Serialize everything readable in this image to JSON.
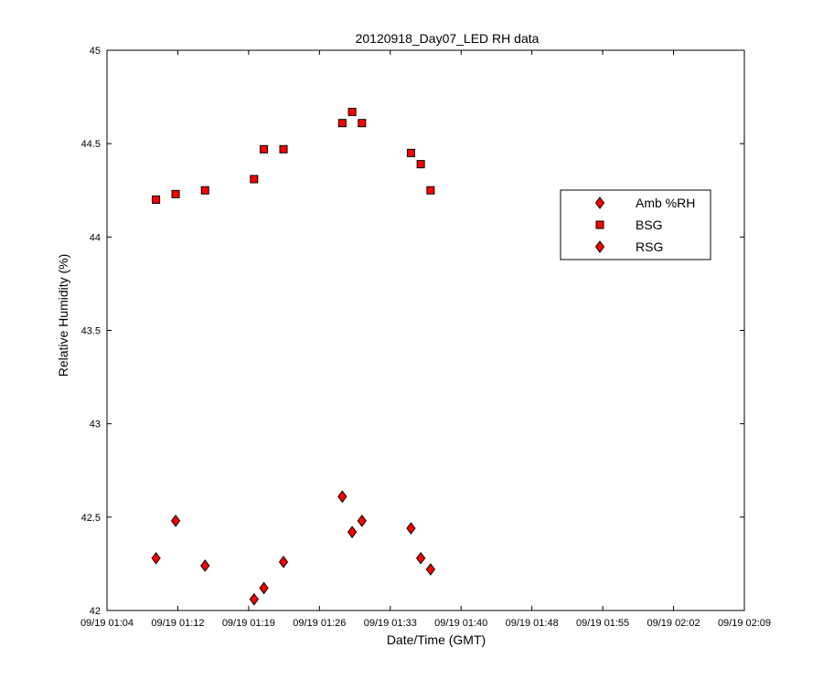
{
  "chart_data": {
    "type": "scatter",
    "title": "20120918_Day07_LED RH data",
    "xlabel": "Date/Time (GMT)",
    "ylabel": "Relative Humidity (%)",
    "xlim": [
      "09/19 01:04",
      "09/19 02:09"
    ],
    "ylim": [
      42,
      45
    ],
    "x_ticks": [
      "09/19 01:04",
      "09/19 01:12",
      "09/19 01:19",
      "09/19 01:26",
      "09/19 01:33",
      "09/19 01:40",
      "09/19 01:48",
      "09/19 01:55",
      "09/19 02:02",
      "09/19 02:09"
    ],
    "y_ticks": [
      "42",
      "42.5",
      "43",
      "43.5",
      "44",
      "44.5",
      "45"
    ],
    "grid": false,
    "legend_position": "right",
    "legend": [
      "Amb %RH",
      "BSG",
      "RSG"
    ],
    "series": [
      {
        "name": "Amb %RH",
        "marker": "diamond",
        "color": "#ff0000",
        "points": []
      },
      {
        "name": "BSG",
        "marker": "square",
        "color": "#ff0000",
        "points": [
          {
            "x": "09/19 01:09",
            "y": 44.2
          },
          {
            "x": "09/19 01:11",
            "y": 44.23
          },
          {
            "x": "09/19 01:14",
            "y": 44.25
          },
          {
            "x": "09/19 01:19",
            "y": 44.31
          },
          {
            "x": "09/19 01:20",
            "y": 44.47
          },
          {
            "x": "09/19 01:22",
            "y": 44.47
          },
          {
            "x": "09/19 01:28",
            "y": 44.61
          },
          {
            "x": "09/19 01:29",
            "y": 44.67
          },
          {
            "x": "09/19 01:30",
            "y": 44.61
          },
          {
            "x": "09/19 01:35",
            "y": 44.45
          },
          {
            "x": "09/19 01:36",
            "y": 44.39
          },
          {
            "x": "09/19 01:37",
            "y": 44.25
          }
        ]
      },
      {
        "name": "RSG",
        "marker": "diamond",
        "color": "#ff0000",
        "points": [
          {
            "x": "09/19 01:09",
            "y": 42.28
          },
          {
            "x": "09/19 01:11",
            "y": 42.48
          },
          {
            "x": "09/19 01:14",
            "y": 42.24
          },
          {
            "x": "09/19 01:19",
            "y": 42.06
          },
          {
            "x": "09/19 01:20",
            "y": 42.12
          },
          {
            "x": "09/19 01:22",
            "y": 42.26
          },
          {
            "x": "09/19 01:28",
            "y": 42.61
          },
          {
            "x": "09/19 01:29",
            "y": 42.42
          },
          {
            "x": "09/19 01:30",
            "y": 42.48
          },
          {
            "x": "09/19 01:35",
            "y": 42.44
          },
          {
            "x": "09/19 01:36",
            "y": 42.28
          },
          {
            "x": "09/19 01:37",
            "y": 42.22
          }
        ]
      }
    ]
  }
}
